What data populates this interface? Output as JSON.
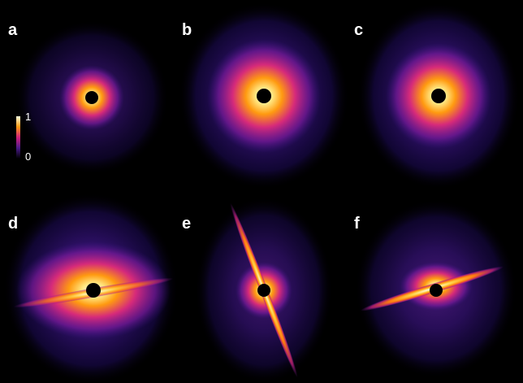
{
  "panels": [
    {
      "label": "a"
    },
    {
      "label": "b"
    },
    {
      "label": "c"
    },
    {
      "label": "d"
    },
    {
      "label": "e"
    },
    {
      "label": "f"
    }
  ],
  "colorbar": {
    "max_label": "1",
    "min_label": "0"
  }
}
